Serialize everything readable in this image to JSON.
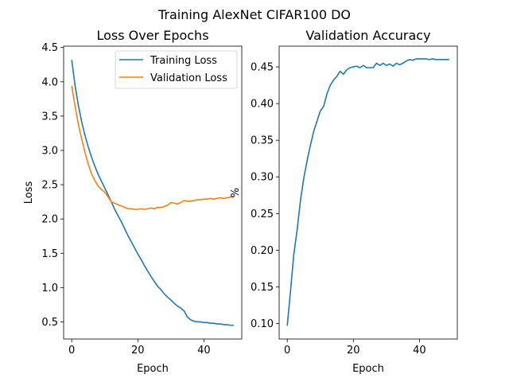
{
  "figure": {
    "title": "Training AlexNet CIFAR100 DO"
  },
  "colors": {
    "training": "#1f77b4",
    "validation": "#ff7f0e"
  },
  "chart_data": [
    {
      "type": "line",
      "title": "Loss Over Epochs",
      "xlabel": "Epoch",
      "ylabel": "Loss",
      "xlim": [
        -2.45,
        51.45
      ],
      "ylim": [
        0.25,
        4.52
      ],
      "xticks": [
        0,
        20,
        40
      ],
      "yticks": [
        0.5,
        1.0,
        1.5,
        2.0,
        2.5,
        3.0,
        3.5,
        4.0,
        4.5
      ],
      "grid": false,
      "legend": "top-right",
      "series": [
        {
          "name": "Training Loss",
          "color": "#1f77b4",
          "x": [
            0,
            1,
            2,
            3,
            4,
            5,
            6,
            7,
            8,
            9,
            10,
            11,
            12,
            13,
            14,
            15,
            16,
            17,
            18,
            19,
            20,
            21,
            22,
            23,
            24,
            25,
            26,
            27,
            28,
            29,
            30,
            31,
            32,
            33,
            34,
            35,
            36,
            37,
            38,
            39,
            40,
            41,
            42,
            43,
            44,
            45,
            46,
            47,
            48,
            49
          ],
          "values": [
            4.32,
            3.95,
            3.66,
            3.42,
            3.22,
            3.05,
            2.9,
            2.77,
            2.65,
            2.55,
            2.45,
            2.35,
            2.25,
            2.14,
            2.05,
            1.96,
            1.86,
            1.76,
            1.67,
            1.58,
            1.49,
            1.41,
            1.32,
            1.24,
            1.16,
            1.09,
            1.02,
            0.97,
            0.91,
            0.86,
            0.82,
            0.77,
            0.73,
            0.7,
            0.66,
            0.57,
            0.53,
            0.51,
            0.5,
            0.5,
            0.49,
            0.49,
            0.48,
            0.48,
            0.47,
            0.47,
            0.46,
            0.46,
            0.45,
            0.45
          ]
        },
        {
          "name": "Validation Loss",
          "color": "#ff7f0e",
          "x": [
            0,
            1,
            2,
            3,
            4,
            5,
            6,
            7,
            8,
            9,
            10,
            11,
            12,
            13,
            14,
            15,
            16,
            17,
            18,
            19,
            20,
            21,
            22,
            23,
            24,
            25,
            26,
            27,
            28,
            29,
            30,
            31,
            32,
            33,
            34,
            35,
            36,
            37,
            38,
            39,
            40,
            41,
            42,
            43,
            44,
            45,
            46,
            47,
            48,
            49
          ],
          "values": [
            3.94,
            3.65,
            3.38,
            3.17,
            2.97,
            2.8,
            2.66,
            2.56,
            2.48,
            2.43,
            2.39,
            2.32,
            2.25,
            2.23,
            2.21,
            2.19,
            2.17,
            2.15,
            2.15,
            2.14,
            2.14,
            2.15,
            2.14,
            2.15,
            2.16,
            2.15,
            2.17,
            2.17,
            2.18,
            2.2,
            2.24,
            2.23,
            2.22,
            2.24,
            2.27,
            2.26,
            2.26,
            2.27,
            2.28,
            2.28,
            2.29,
            2.29,
            2.3,
            2.29,
            2.3,
            2.31,
            2.3,
            2.31,
            2.32,
            2.32
          ]
        }
      ]
    },
    {
      "type": "line",
      "title": "Validation Accuracy",
      "xlabel": "Epoch",
      "ylabel": "%",
      "xlim": [
        -2.45,
        51.45
      ],
      "ylim": [
        0.0788,
        0.4783
      ],
      "xticks": [
        0,
        20,
        40
      ],
      "yticks": [
        0.1,
        0.15,
        0.2,
        0.25,
        0.3,
        0.35,
        0.4,
        0.45
      ],
      "grid": false,
      "legend": "none",
      "series": [
        {
          "color": "#1f77b4",
          "x": [
            0,
            1,
            2,
            3,
            4,
            5,
            6,
            7,
            8,
            9,
            10,
            11,
            12,
            13,
            14,
            15,
            16,
            17,
            18,
            19,
            20,
            21,
            22,
            23,
            24,
            25,
            26,
            27,
            28,
            29,
            30,
            31,
            32,
            33,
            34,
            35,
            36,
            37,
            38,
            39,
            40,
            41,
            42,
            43,
            44,
            45,
            46,
            47,
            48,
            49
          ],
          "values": [
            0.097,
            0.145,
            0.195,
            0.228,
            0.268,
            0.298,
            0.322,
            0.343,
            0.362,
            0.376,
            0.39,
            0.396,
            0.413,
            0.425,
            0.432,
            0.437,
            0.444,
            0.44,
            0.446,
            0.449,
            0.45,
            0.451,
            0.449,
            0.452,
            0.449,
            0.449,
            0.449,
            0.455,
            0.452,
            0.455,
            0.452,
            0.454,
            0.451,
            0.455,
            0.453,
            0.455,
            0.458,
            0.46,
            0.459,
            0.461,
            0.461,
            0.461,
            0.461,
            0.46,
            0.461,
            0.46,
            0.46,
            0.46,
            0.46,
            0.46
          ]
        }
      ]
    }
  ]
}
